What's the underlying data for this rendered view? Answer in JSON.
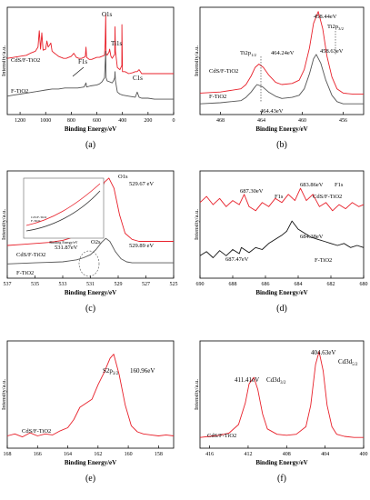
{
  "chart_data": [
    {
      "panel": "a",
      "type": "line",
      "xlabel": "Binding Energy/eV",
      "ylabel": "Intensity/a.u.",
      "xlim": [
        1300,
        0
      ],
      "xticks": [
        1200,
        1000,
        800,
        600,
        400,
        200,
        0
      ],
      "series": [
        {
          "name": "CdS/F-TiO2",
          "color": "#e8202a",
          "x": [
            1300,
            1250,
            1200,
            1150,
            1120,
            1100,
            1080,
            1060,
            1050,
            1040,
            1030,
            1020,
            1000,
            990,
            980,
            970,
            960,
            950,
            930,
            920,
            900,
            880,
            860,
            840,
            820,
            800,
            780,
            760,
            740,
            720,
            700,
            690,
            685,
            680,
            670,
            660,
            640,
            620,
            600,
            580,
            560,
            540,
            535,
            531,
            528,
            520,
            505,
            500,
            490,
            480,
            470,
            460,
            458,
            455,
            440,
            420,
            405,
            404,
            400,
            380,
            350,
            320,
            300,
            285,
            270,
            250,
            200,
            150,
            100,
            50,
            0
          ],
          "y": [
            0.55,
            0.56,
            0.57,
            0.58,
            0.6,
            0.61,
            0.62,
            0.66,
            0.82,
            0.64,
            0.8,
            0.63,
            0.64,
            0.72,
            0.66,
            0.68,
            0.7,
            0.62,
            0.6,
            0.59,
            0.57,
            0.56,
            0.55,
            0.55,
            0.56,
            0.57,
            0.6,
            0.56,
            0.55,
            0.55,
            0.56,
            0.57,
            0.66,
            0.56,
            0.55,
            0.54,
            0.54,
            0.55,
            0.56,
            0.56,
            0.57,
            0.58,
            0.7,
            0.98,
            0.6,
            0.58,
            0.61,
            0.64,
            0.57,
            0.55,
            0.57,
            0.59,
            0.86,
            0.62,
            0.46,
            0.44,
            0.48,
            0.88,
            0.42,
            0.42,
            0.4,
            0.41,
            0.42,
            0.42,
            0.44,
            0.4,
            0.4,
            0.4,
            0.4,
            0.4,
            0.4
          ]
        },
        {
          "name": "F-TiO2",
          "color": "#555555",
          "x": [
            1300,
            1250,
            1200,
            1150,
            1100,
            1050,
            1000,
            950,
            900,
            850,
            800,
            750,
            700,
            685,
            680,
            650,
            600,
            580,
            560,
            540,
            531,
            528,
            520,
            500,
            480,
            470,
            460,
            458,
            455,
            440,
            420,
            400,
            350,
            300,
            285,
            270,
            250,
            200,
            150,
            100,
            50,
            0
          ],
          "y": [
            0.18,
            0.19,
            0.2,
            0.21,
            0.22,
            0.23,
            0.24,
            0.25,
            0.25,
            0.26,
            0.26,
            0.26,
            0.27,
            0.31,
            0.27,
            0.28,
            0.29,
            0.3,
            0.32,
            0.36,
            0.62,
            0.36,
            0.33,
            0.32,
            0.31,
            0.33,
            0.36,
            0.42,
            0.33,
            0.22,
            0.2,
            0.19,
            0.18,
            0.17,
            0.22,
            0.17,
            0.16,
            0.16,
            0.15,
            0.15,
            0.15,
            0.15
          ]
        }
      ],
      "annotations": [
        "CdS/F-TiO2",
        "F-TiO2",
        "O1s",
        "Ti1s",
        "F1s",
        "C1s"
      ]
    },
    {
      "panel": "b",
      "type": "line",
      "xlabel": "Binding Energy/eV",
      "ylabel": "Intensity/a.u.",
      "xlim": [
        470,
        454
      ],
      "xticks": [
        468,
        464,
        460,
        456
      ],
      "series": [
        {
          "name": "CdS/F-TiO2",
          "color": "#e8202a",
          "x": [
            470,
            468,
            466,
            465.5,
            465,
            464.6,
            464.24,
            463.8,
            463.3,
            462.6,
            462,
            461,
            460.3,
            459.8,
            459.3,
            458.9,
            458.44,
            458.0,
            457.6,
            457.1,
            456.6,
            456,
            455,
            454
          ],
          "y": [
            0.2,
            0.21,
            0.24,
            0.28,
            0.36,
            0.44,
            0.47,
            0.44,
            0.37,
            0.3,
            0.28,
            0.29,
            0.32,
            0.42,
            0.62,
            0.85,
            0.96,
            0.8,
            0.55,
            0.35,
            0.24,
            0.2,
            0.19,
            0.19
          ]
        },
        {
          "name": "F-TiO2",
          "color": "#555555",
          "x": [
            470,
            468,
            466,
            465.5,
            465,
            464.6,
            464.43,
            463.9,
            463.3,
            462.6,
            462,
            461,
            460.3,
            459.8,
            459.3,
            458.9,
            458.63,
            458.2,
            457.7,
            457.1,
            456.6,
            456,
            455,
            454
          ],
          "y": [
            0.1,
            0.11,
            0.13,
            0.16,
            0.21,
            0.26,
            0.28,
            0.26,
            0.21,
            0.17,
            0.15,
            0.16,
            0.18,
            0.24,
            0.38,
            0.52,
            0.56,
            0.48,
            0.32,
            0.18,
            0.12,
            0.1,
            0.1,
            0.1
          ]
        }
      ],
      "annotations": [
        "458.44eV",
        "Ti2p3/2",
        "Ti2p1/2",
        "464.24eV",
        "458.63eV",
        "CdS/F-TiO2",
        "F-TiO2",
        "464.43eV"
      ]
    },
    {
      "panel": "c",
      "type": "line",
      "xlabel": "Binding Energy/eV",
      "ylabel": "Intensity/a.u.",
      "xlim": [
        537,
        525
      ],
      "xticks": [
        537,
        535,
        533,
        531,
        529,
        527,
        525
      ],
      "series": [
        {
          "name": "CdS/F-TiO2",
          "color": "#e8202a",
          "x": [
            537,
            536,
            535,
            534,
            533,
            532.5,
            532,
            531.5,
            531.2,
            530.8,
            530.4,
            530,
            529.67,
            529.3,
            528.9,
            528.5,
            528,
            527.5,
            527,
            526,
            525
          ],
          "y": [
            0.32,
            0.33,
            0.34,
            0.35,
            0.37,
            0.39,
            0.42,
            0.47,
            0.53,
            0.64,
            0.8,
            0.94,
            0.98,
            0.88,
            0.62,
            0.44,
            0.38,
            0.36,
            0.36,
            0.36,
            0.36
          ]
        },
        {
          "name": "F-TiO2",
          "color": "#555555",
          "x": [
            537,
            536,
            535,
            534,
            533,
            532.5,
            532,
            531.5,
            531,
            530.6,
            530.2,
            529.89,
            529.6,
            529.2,
            528.8,
            528.4,
            528,
            527.5,
            527,
            526,
            525
          ],
          "y": [
            0.14,
            0.145,
            0.15,
            0.155,
            0.16,
            0.17,
            0.18,
            0.2,
            0.23,
            0.28,
            0.35,
            0.39,
            0.36,
            0.26,
            0.19,
            0.16,
            0.15,
            0.15,
            0.15,
            0.15,
            0.15
          ]
        }
      ],
      "annotations": [
        "O1s",
        "529.67 eV",
        "529.89 eV",
        "O2s",
        "531.87eV",
        "CdS/F-TiO2",
        "F-TiO2"
      ],
      "inset": {
        "xlabel": "Binding Energy/eV",
        "legend": [
          "CdS/F-TiO2",
          "F-TiO2"
        ]
      }
    },
    {
      "panel": "d",
      "type": "line",
      "xlabel": "Binding Energy/eV",
      "ylabel": "Intensity/a.u.",
      "xlim": [
        690,
        680
      ],
      "xticks": [
        690,
        688,
        686,
        684,
        682,
        680
      ],
      "series": [
        {
          "name": "CdS/F-TiO2",
          "color": "#e8202a",
          "x": [
            690,
            689.6,
            689.2,
            688.8,
            688.4,
            688,
            687.6,
            687.3,
            687,
            686.6,
            686.2,
            685.8,
            685.4,
            685,
            684.6,
            684.2,
            683.86,
            683.5,
            683.1,
            682.7,
            682.3,
            681.9,
            681.5,
            681.1,
            680.7,
            680.3,
            680
          ],
          "y": [
            0.74,
            0.8,
            0.72,
            0.78,
            0.7,
            0.76,
            0.72,
            0.82,
            0.7,
            0.66,
            0.74,
            0.7,
            0.78,
            0.74,
            0.82,
            0.76,
            0.88,
            0.76,
            0.82,
            0.7,
            0.74,
            0.66,
            0.72,
            0.68,
            0.74,
            0.7,
            0.72
          ]
        },
        {
          "name": "F-TiO2",
          "color": "#111111",
          "x": [
            690,
            689.6,
            689.2,
            688.8,
            688.4,
            688,
            687.6,
            687.47,
            687,
            686.6,
            686.2,
            685.8,
            685.4,
            685,
            684.7,
            684.38,
            684,
            683.6,
            683.2,
            682.8,
            682.4,
            682,
            681.6,
            681.2,
            680.8,
            680.4,
            680
          ],
          "y": [
            0.22,
            0.26,
            0.2,
            0.27,
            0.22,
            0.28,
            0.24,
            0.3,
            0.25,
            0.3,
            0.28,
            0.34,
            0.38,
            0.42,
            0.46,
            0.56,
            0.48,
            0.44,
            0.4,
            0.38,
            0.36,
            0.34,
            0.32,
            0.34,
            0.3,
            0.32,
            0.3
          ]
        }
      ],
      "annotations": [
        "687.30eV",
        "F1s",
        "683.86eV",
        "F1s",
        "CdS/F-TiO2",
        "684.38eV",
        "687.47eV",
        "F-TiO2"
      ]
    },
    {
      "panel": "e",
      "type": "line",
      "xlabel": "Binding Energy/eV",
      "ylabel": "Intensity/a.u.",
      "xlim": [
        168,
        157
      ],
      "xticks": [
        168,
        166,
        164,
        162,
        160,
        158
      ],
      "series": [
        {
          "name": "CdS/F-TiO2",
          "color": "#e8202a",
          "x": [
            168,
            167.5,
            167,
            166.5,
            166,
            165.5,
            165,
            164.5,
            164,
            163.6,
            163.2,
            162.8,
            162.4,
            162,
            161.6,
            161.2,
            160.96,
            160.6,
            160.2,
            159.8,
            159.4,
            159,
            158.5,
            158,
            157.5,
            157
          ],
          "y": [
            0.12,
            0.14,
            0.11,
            0.15,
            0.12,
            0.14,
            0.13,
            0.17,
            0.2,
            0.28,
            0.4,
            0.44,
            0.48,
            0.62,
            0.74,
            0.88,
            0.92,
            0.72,
            0.42,
            0.22,
            0.16,
            0.14,
            0.13,
            0.12,
            0.13,
            0.12
          ]
        }
      ],
      "annotations": [
        "S2p3/2",
        "160.96eV",
        "CdS/F-TiO2"
      ]
    },
    {
      "panel": "f",
      "type": "line",
      "xlabel": "Binding Energy/eV",
      "ylabel": "Intensity/a.u.",
      "xlim": [
        417,
        400
      ],
      "xticks": [
        416,
        412,
        408,
        404,
        400
      ],
      "series": [
        {
          "name": "CdS/F-TiO2",
          "color": "#e8202a",
          "x": [
            417,
            416,
            415,
            414,
            413,
            412.3,
            411.9,
            411.41,
            411,
            410.5,
            410,
            409,
            408,
            407,
            406,
            405.5,
            405,
            404.63,
            404.2,
            403.8,
            403.3,
            402.8,
            402,
            401,
            400
          ],
          "y": [
            0.1,
            0.11,
            0.12,
            0.14,
            0.22,
            0.42,
            0.6,
            0.66,
            0.55,
            0.32,
            0.18,
            0.13,
            0.12,
            0.13,
            0.2,
            0.4,
            0.78,
            0.9,
            0.72,
            0.4,
            0.2,
            0.13,
            0.11,
            0.1,
            0.1
          ]
        }
      ],
      "annotations": [
        "404.63eV",
        "Cd3d5/2",
        "411.41eV",
        "Cd3d3/2",
        "CdS/F-TiO2"
      ]
    }
  ],
  "panel_letters": [
    "(a)",
    "(b)",
    "(c)",
    "(d)",
    "(e)",
    "(f)"
  ]
}
